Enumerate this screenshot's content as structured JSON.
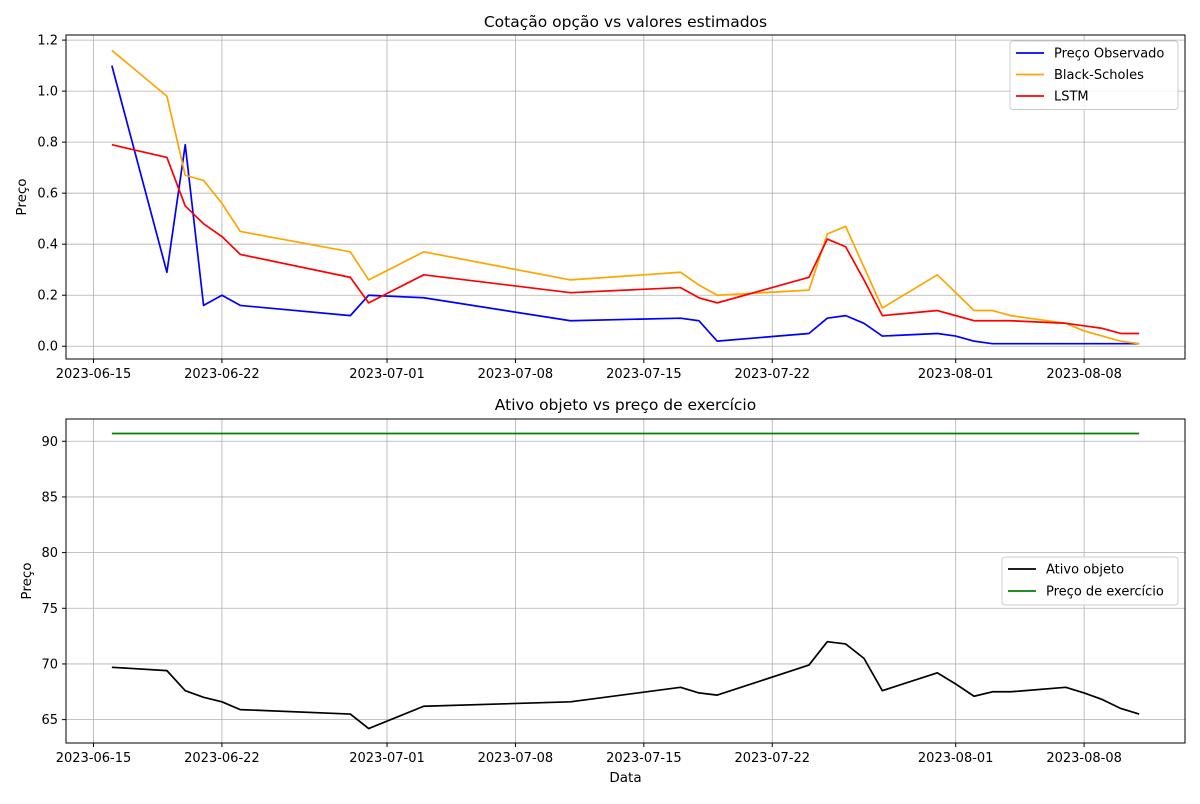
{
  "chart_data": [
    {
      "type": "line",
      "title": "Cotação opção vs valores estimados",
      "xlabel": "",
      "ylabel": "Preço",
      "ylim": [
        -0.05,
        1.22
      ],
      "grid": true,
      "legend_position": "top-right",
      "x_ticks": [
        "2023-06-15",
        "2023-06-22",
        "2023-07-01",
        "2023-07-08",
        "2023-07-15",
        "2023-07-22",
        "2023-08-01",
        "2023-08-08"
      ],
      "y_ticks": [
        "0.0",
        "0.2",
        "0.4",
        "0.6",
        "0.8",
        "1.0",
        "1.2"
      ],
      "x": [
        "2023-06-16",
        "2023-06-19",
        "2023-06-20",
        "2023-06-21",
        "2023-06-22",
        "2023-06-23",
        "2023-06-29",
        "2023-06-30",
        "2023-07-03",
        "2023-07-11",
        "2023-07-17",
        "2023-07-18",
        "2023-07-19",
        "2023-07-24",
        "2023-07-25",
        "2023-07-26",
        "2023-07-27",
        "2023-07-28",
        "2023-07-31",
        "2023-08-01",
        "2023-08-02",
        "2023-08-03",
        "2023-08-04",
        "2023-08-07",
        "2023-08-08",
        "2023-08-09",
        "2023-08-10",
        "2023-08-11"
      ],
      "series": [
        {
          "name": "Preço Observado",
          "color": "#0000ff",
          "values": [
            1.1,
            0.29,
            0.79,
            0.16,
            0.2,
            0.16,
            0.12,
            0.2,
            0.19,
            0.1,
            0.11,
            0.1,
            0.02,
            0.05,
            0.11,
            0.12,
            0.09,
            0.04,
            0.05,
            0.04,
            0.02,
            0.01,
            0.01,
            0.01,
            0.01,
            0.01,
            0.01,
            0.01
          ]
        },
        {
          "name": "Black-Scholes",
          "color": "#ffa500",
          "values": [
            1.16,
            0.98,
            0.67,
            0.65,
            0.56,
            0.45,
            0.37,
            0.26,
            0.37,
            0.26,
            0.29,
            0.24,
            0.2,
            0.22,
            0.44,
            0.47,
            0.31,
            0.15,
            0.28,
            0.21,
            0.14,
            0.14,
            0.12,
            0.09,
            0.06,
            0.04,
            0.02,
            0.01
          ]
        },
        {
          "name": "LSTM",
          "color": "#ff0000",
          "values": [
            0.79,
            0.74,
            0.55,
            0.48,
            0.43,
            0.36,
            0.27,
            0.17,
            0.28,
            0.21,
            0.23,
            0.19,
            0.17,
            0.27,
            0.42,
            0.39,
            0.26,
            0.12,
            0.14,
            0.12,
            0.1,
            0.1,
            0.1,
            0.09,
            0.08,
            0.07,
            0.05,
            0.05
          ]
        }
      ]
    },
    {
      "type": "line",
      "title": "Ativo objeto vs preço de exercício",
      "xlabel": "Data",
      "ylabel": "Preço",
      "ylim": [
        62.9,
        92.0
      ],
      "grid": true,
      "legend_position": "center-right",
      "x_ticks": [
        "2023-06-15",
        "2023-06-22",
        "2023-07-01",
        "2023-07-08",
        "2023-07-15",
        "2023-07-22",
        "2023-08-01",
        "2023-08-08"
      ],
      "y_ticks": [
        "65",
        "70",
        "75",
        "80",
        "85",
        "90"
      ],
      "x": [
        "2023-06-16",
        "2023-06-19",
        "2023-06-20",
        "2023-06-21",
        "2023-06-22",
        "2023-06-23",
        "2023-06-29",
        "2023-06-30",
        "2023-07-03",
        "2023-07-11",
        "2023-07-17",
        "2023-07-18",
        "2023-07-19",
        "2023-07-24",
        "2023-07-25",
        "2023-07-26",
        "2023-07-27",
        "2023-07-28",
        "2023-07-31",
        "2023-08-01",
        "2023-08-02",
        "2023-08-03",
        "2023-08-04",
        "2023-08-07",
        "2023-08-08",
        "2023-08-09",
        "2023-08-10",
        "2023-08-11"
      ],
      "series": [
        {
          "name": "Ativo objeto",
          "color": "#000000",
          "values": [
            69.7,
            69.4,
            67.6,
            67.0,
            66.6,
            65.9,
            65.5,
            64.2,
            66.2,
            66.6,
            67.9,
            67.4,
            67.2,
            69.9,
            72.0,
            71.8,
            70.5,
            67.6,
            69.2,
            68.2,
            67.1,
            67.5,
            67.5,
            67.9,
            67.4,
            66.8,
            66.0,
            65.5
          ]
        },
        {
          "name": "Preço de exercício",
          "color": "#008000",
          "values": [
            90.7,
            90.7,
            90.7,
            90.7,
            90.7,
            90.7,
            90.7,
            90.7,
            90.7,
            90.7,
            90.7,
            90.7,
            90.7,
            90.7,
            90.7,
            90.7,
            90.7,
            90.7,
            90.7,
            90.7,
            90.7,
            90.7,
            90.7,
            90.7,
            90.7,
            90.7,
            90.7,
            90.7
          ]
        }
      ]
    }
  ]
}
